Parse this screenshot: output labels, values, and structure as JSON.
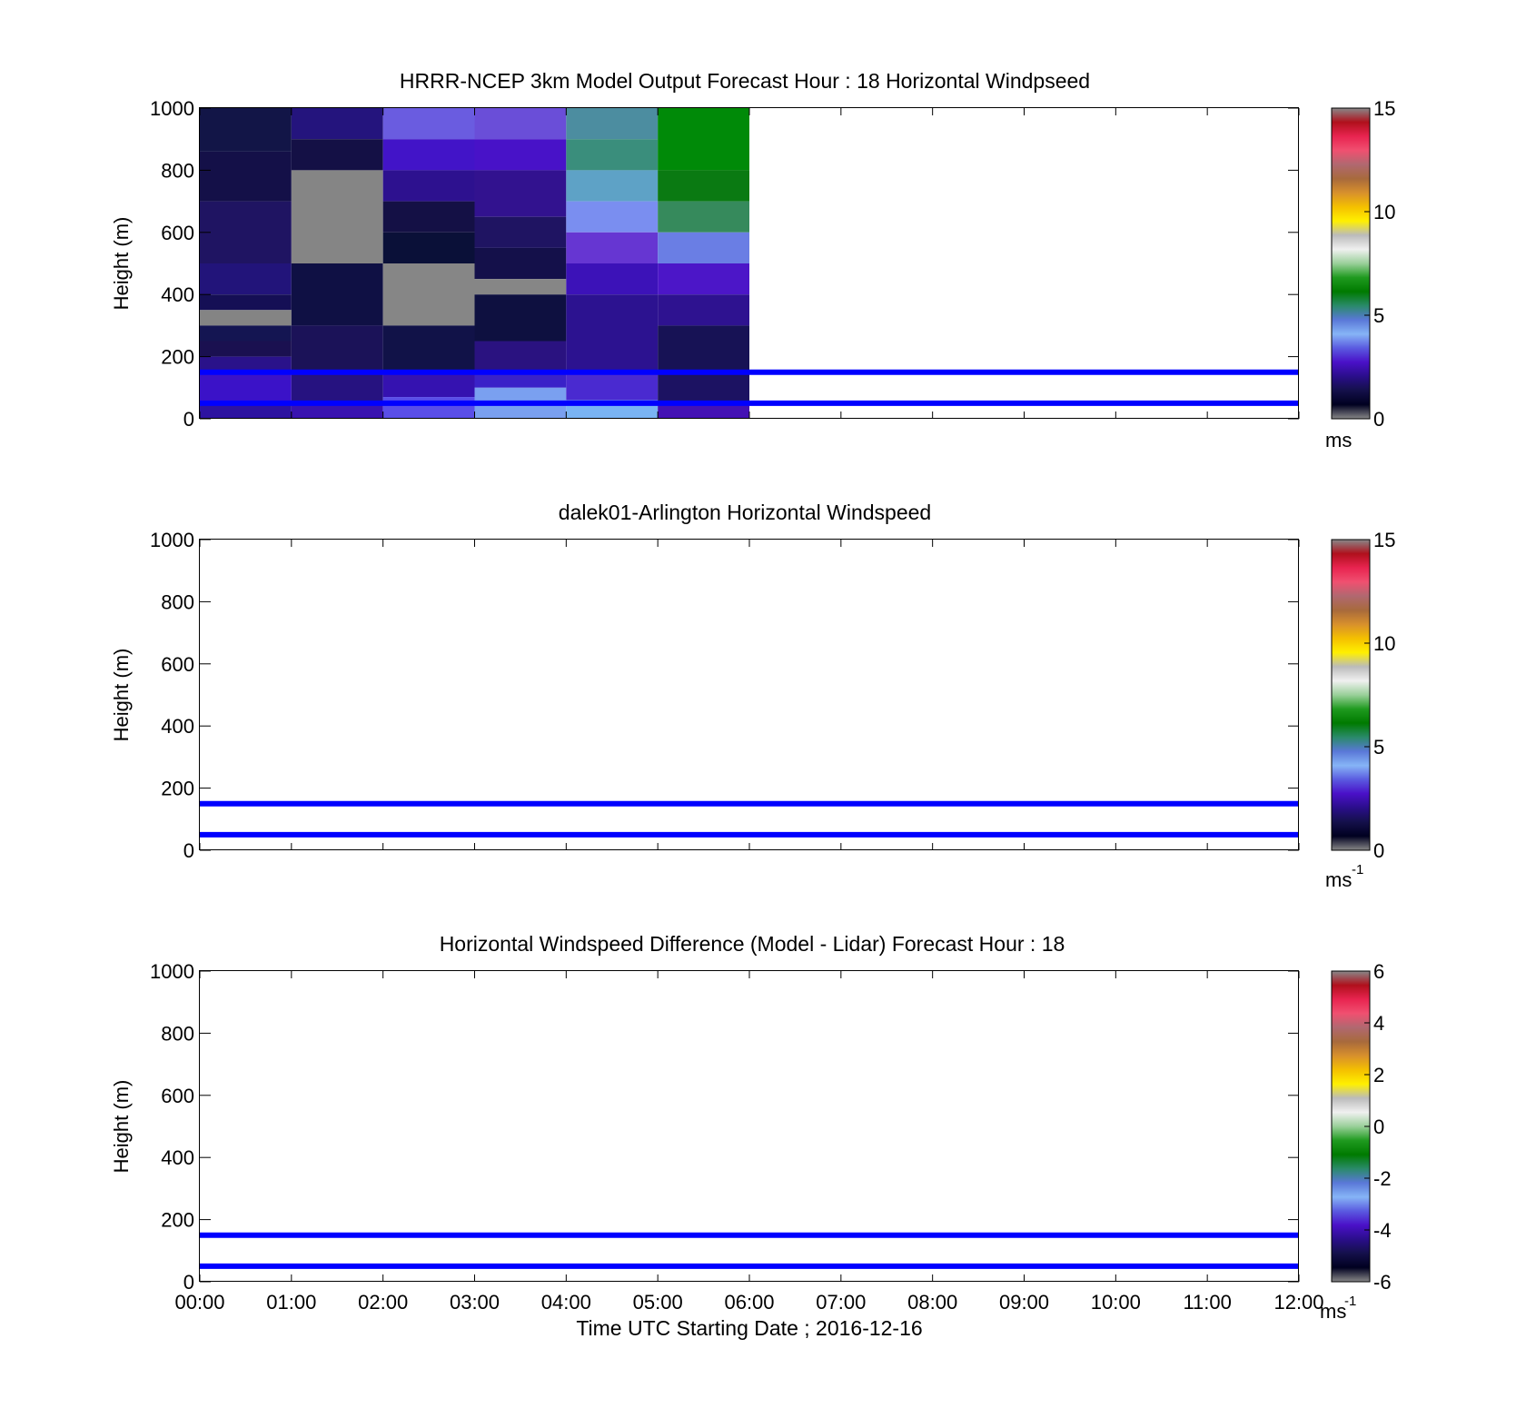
{
  "chart_data": [
    {
      "type": "heatmap",
      "title": "HRRR-NCEP 3km Model Output   Forecast Hour : 18 Horizontal Windpseed",
      "ylabel": "Height (m)",
      "xlabel": "",
      "xlim": [
        0,
        12
      ],
      "ylim": [
        0,
        1000
      ],
      "yticks": [
        0,
        200,
        400,
        600,
        800,
        1000
      ],
      "xtick_labels": [],
      "colorbar": {
        "min": 0,
        "max": 15,
        "ticks": [
          "0",
          "5",
          "10",
          "15"
        ],
        "unit": "ms",
        "unit_sup": ""
      },
      "reference_lines": [
        50,
        150
      ],
      "cells": [
        {
          "x0": 0,
          "x1": 1,
          "y0": 860,
          "y1": 1000,
          "color": "#121547"
        },
        {
          "x0": 0,
          "x1": 1,
          "y0": 700,
          "y1": 860,
          "color": "#141048"
        },
        {
          "x0": 0,
          "x1": 1,
          "y0": 500,
          "y1": 700,
          "color": "#1f1462"
        },
        {
          "x0": 0,
          "x1": 1,
          "y0": 400,
          "y1": 500,
          "color": "#22147a"
        },
        {
          "x0": 0,
          "x1": 1,
          "y0": 350,
          "y1": 400,
          "color": "#150f55"
        },
        {
          "x0": 0,
          "x1": 1,
          "y0": 300,
          "y1": 350,
          "color": "#848484"
        },
        {
          "x0": 0,
          "x1": 1,
          "y0": 250,
          "y1": 300,
          "color": "#141552"
        },
        {
          "x0": 0,
          "x1": 1,
          "y0": 200,
          "y1": 250,
          "color": "#1a1050"
        },
        {
          "x0": 0,
          "x1": 1,
          "y0": 150,
          "y1": 200,
          "color": "#2a128a"
        },
        {
          "x0": 0,
          "x1": 1,
          "y0": 50,
          "y1": 150,
          "color": "#3b12c8"
        },
        {
          "x0": 0,
          "x1": 1,
          "y0": 0,
          "y1": 50,
          "color": "#2d13a0"
        },
        {
          "x0": 1,
          "x1": 2,
          "y0": 900,
          "y1": 1000,
          "color": "#24147d"
        },
        {
          "x0": 1,
          "x1": 2,
          "y0": 800,
          "y1": 900,
          "color": "#141045"
        },
        {
          "x0": 1,
          "x1": 2,
          "y0": 500,
          "y1": 800,
          "color": "#858585"
        },
        {
          "x0": 1,
          "x1": 2,
          "y0": 300,
          "y1": 500,
          "color": "#0f1044"
        },
        {
          "x0": 1,
          "x1": 2,
          "y0": 150,
          "y1": 300,
          "color": "#1b1258"
        },
        {
          "x0": 1,
          "x1": 2,
          "y0": 50,
          "y1": 150,
          "color": "#261280"
        },
        {
          "x0": 1,
          "x1": 2,
          "y0": 0,
          "y1": 50,
          "color": "#3913b0"
        },
        {
          "x0": 2,
          "x1": 3,
          "y0": 900,
          "y1": 1000,
          "color": "#6a5ce0"
        },
        {
          "x0": 2,
          "x1": 3,
          "y0": 800,
          "y1": 900,
          "color": "#4214c8"
        },
        {
          "x0": 2,
          "x1": 3,
          "y0": 700,
          "y1": 800,
          "color": "#2d118f"
        },
        {
          "x0": 2,
          "x1": 3,
          "y0": 600,
          "y1": 700,
          "color": "#141045"
        },
        {
          "x0": 2,
          "x1": 3,
          "y0": 500,
          "y1": 600,
          "color": "#0a1038"
        },
        {
          "x0": 2,
          "x1": 3,
          "y0": 300,
          "y1": 500,
          "color": "#868686"
        },
        {
          "x0": 2,
          "x1": 3,
          "y0": 150,
          "y1": 300,
          "color": "#111248"
        },
        {
          "x0": 2,
          "x1": 3,
          "y0": 70,
          "y1": 150,
          "color": "#3512b0"
        },
        {
          "x0": 2,
          "x1": 3,
          "y0": 0,
          "y1": 70,
          "color": "#5a4ee8"
        },
        {
          "x0": 3,
          "x1": 4,
          "y0": 900,
          "y1": 1000,
          "color": "#6a4ed8"
        },
        {
          "x0": 3,
          "x1": 4,
          "y0": 800,
          "y1": 900,
          "color": "#4812c8"
        },
        {
          "x0": 3,
          "x1": 4,
          "y0": 650,
          "y1": 800,
          "color": "#32128f"
        },
        {
          "x0": 3,
          "x1": 4,
          "y0": 550,
          "y1": 650,
          "color": "#1f1462"
        },
        {
          "x0": 3,
          "x1": 4,
          "y0": 450,
          "y1": 550,
          "color": "#14104a"
        },
        {
          "x0": 3,
          "x1": 4,
          "y0": 400,
          "y1": 450,
          "color": "#868686"
        },
        {
          "x0": 3,
          "x1": 4,
          "y0": 250,
          "y1": 400,
          "color": "#0e1040"
        },
        {
          "x0": 3,
          "x1": 4,
          "y0": 150,
          "y1": 250,
          "color": "#2a1280"
        },
        {
          "x0": 3,
          "x1": 4,
          "y0": 100,
          "y1": 150,
          "color": "#3a22c8"
        },
        {
          "x0": 3,
          "x1": 4,
          "y0": 0,
          "y1": 100,
          "color": "#7aa0f0"
        },
        {
          "x0": 4,
          "x1": 5,
          "y0": 900,
          "y1": 1000,
          "color": "#4c8da0"
        },
        {
          "x0": 4,
          "x1": 5,
          "y0": 800,
          "y1": 900,
          "color": "#3a8e7c"
        },
        {
          "x0": 4,
          "x1": 5,
          "y0": 700,
          "y1": 800,
          "color": "#5ea2c6"
        },
        {
          "x0": 4,
          "x1": 5,
          "y0": 600,
          "y1": 700,
          "color": "#7a8ef0"
        },
        {
          "x0": 4,
          "x1": 5,
          "y0": 500,
          "y1": 600,
          "color": "#6636d2"
        },
        {
          "x0": 4,
          "x1": 5,
          "y0": 400,
          "y1": 500,
          "color": "#3c12b8"
        },
        {
          "x0": 4,
          "x1": 5,
          "y0": 150,
          "y1": 400,
          "color": "#2c1290"
        },
        {
          "x0": 4,
          "x1": 5,
          "y0": 60,
          "y1": 150,
          "color": "#4a2ad0"
        },
        {
          "x0": 4,
          "x1": 5,
          "y0": 0,
          "y1": 60,
          "color": "#7ab4f4"
        },
        {
          "x0": 5,
          "x1": 6,
          "y0": 800,
          "y1": 1000,
          "color": "#008a08"
        },
        {
          "x0": 5,
          "x1": 6,
          "y0": 700,
          "y1": 800,
          "color": "#0a7a12"
        },
        {
          "x0": 5,
          "x1": 6,
          "y0": 600,
          "y1": 700,
          "color": "#368a5c"
        },
        {
          "x0": 5,
          "x1": 6,
          "y0": 500,
          "y1": 600,
          "color": "#6a7ee4"
        },
        {
          "x0": 5,
          "x1": 6,
          "y0": 400,
          "y1": 500,
          "color": "#4c16c8"
        },
        {
          "x0": 5,
          "x1": 6,
          "y0": 300,
          "y1": 400,
          "color": "#2e1290"
        },
        {
          "x0": 5,
          "x1": 6,
          "y0": 150,
          "y1": 300,
          "color": "#171255"
        },
        {
          "x0": 5,
          "x1": 6,
          "y0": 50,
          "y1": 150,
          "color": "#1c1262"
        },
        {
          "x0": 5,
          "x1": 6,
          "y0": 0,
          "y1": 50,
          "color": "#4412b4"
        }
      ]
    },
    {
      "type": "heatmap",
      "title": "dalek01-Arlington  Horizontal Windspeed",
      "ylabel": "Height (m)",
      "xlabel": "",
      "xlim": [
        0,
        12
      ],
      "ylim": [
        0,
        1000
      ],
      "yticks": [
        0,
        200,
        400,
        600,
        800,
        1000
      ],
      "xtick_labels": [],
      "colorbar": {
        "min": 0,
        "max": 15,
        "ticks": [
          "0",
          "5",
          "10",
          "15"
        ],
        "unit": "ms",
        "unit_sup": "-1"
      },
      "reference_lines": [
        50,
        150
      ],
      "cells": []
    },
    {
      "type": "heatmap",
      "title": "Horizontal Windspeed Difference (Model - Lidar) Forecast Hour : 18",
      "ylabel": "Height (m)",
      "xlabel": "Time UTC  Starting Date ; 2016-12-16",
      "xlim": [
        0,
        12
      ],
      "ylim": [
        0,
        1000
      ],
      "yticks": [
        0,
        200,
        400,
        600,
        800,
        1000
      ],
      "xtick_labels": [
        "00:00",
        "01:00",
        "02:00",
        "03:00",
        "04:00",
        "05:00",
        "06:00",
        "07:00",
        "08:00",
        "09:00",
        "10:00",
        "11:00",
        "12:00"
      ],
      "colorbar": {
        "min": -6,
        "max": 6,
        "ticks": [
          "-6",
          "-4",
          "-2",
          "0",
          "2",
          "4",
          "6"
        ],
        "unit": "ms",
        "unit_sup": "-1"
      },
      "reference_lines": [
        50,
        150
      ],
      "cells": []
    }
  ],
  "colormap": [
    "#888888",
    "#000020",
    "#14104a",
    "#2a0e8a",
    "#4a10c8",
    "#5a5ae0",
    "#86b4f6",
    "#5a78d8",
    "#2a8a6a",
    "#007a00",
    "#1f9a1f",
    "#9ad09a",
    "#f0f0f0",
    "#bbbbbb",
    "#fff000",
    "#f4c000",
    "#d8902c",
    "#a86a3c",
    "#b06870",
    "#f05070",
    "#e82450",
    "#b0101c",
    "#888888"
  ],
  "line_color": "#0000ff"
}
